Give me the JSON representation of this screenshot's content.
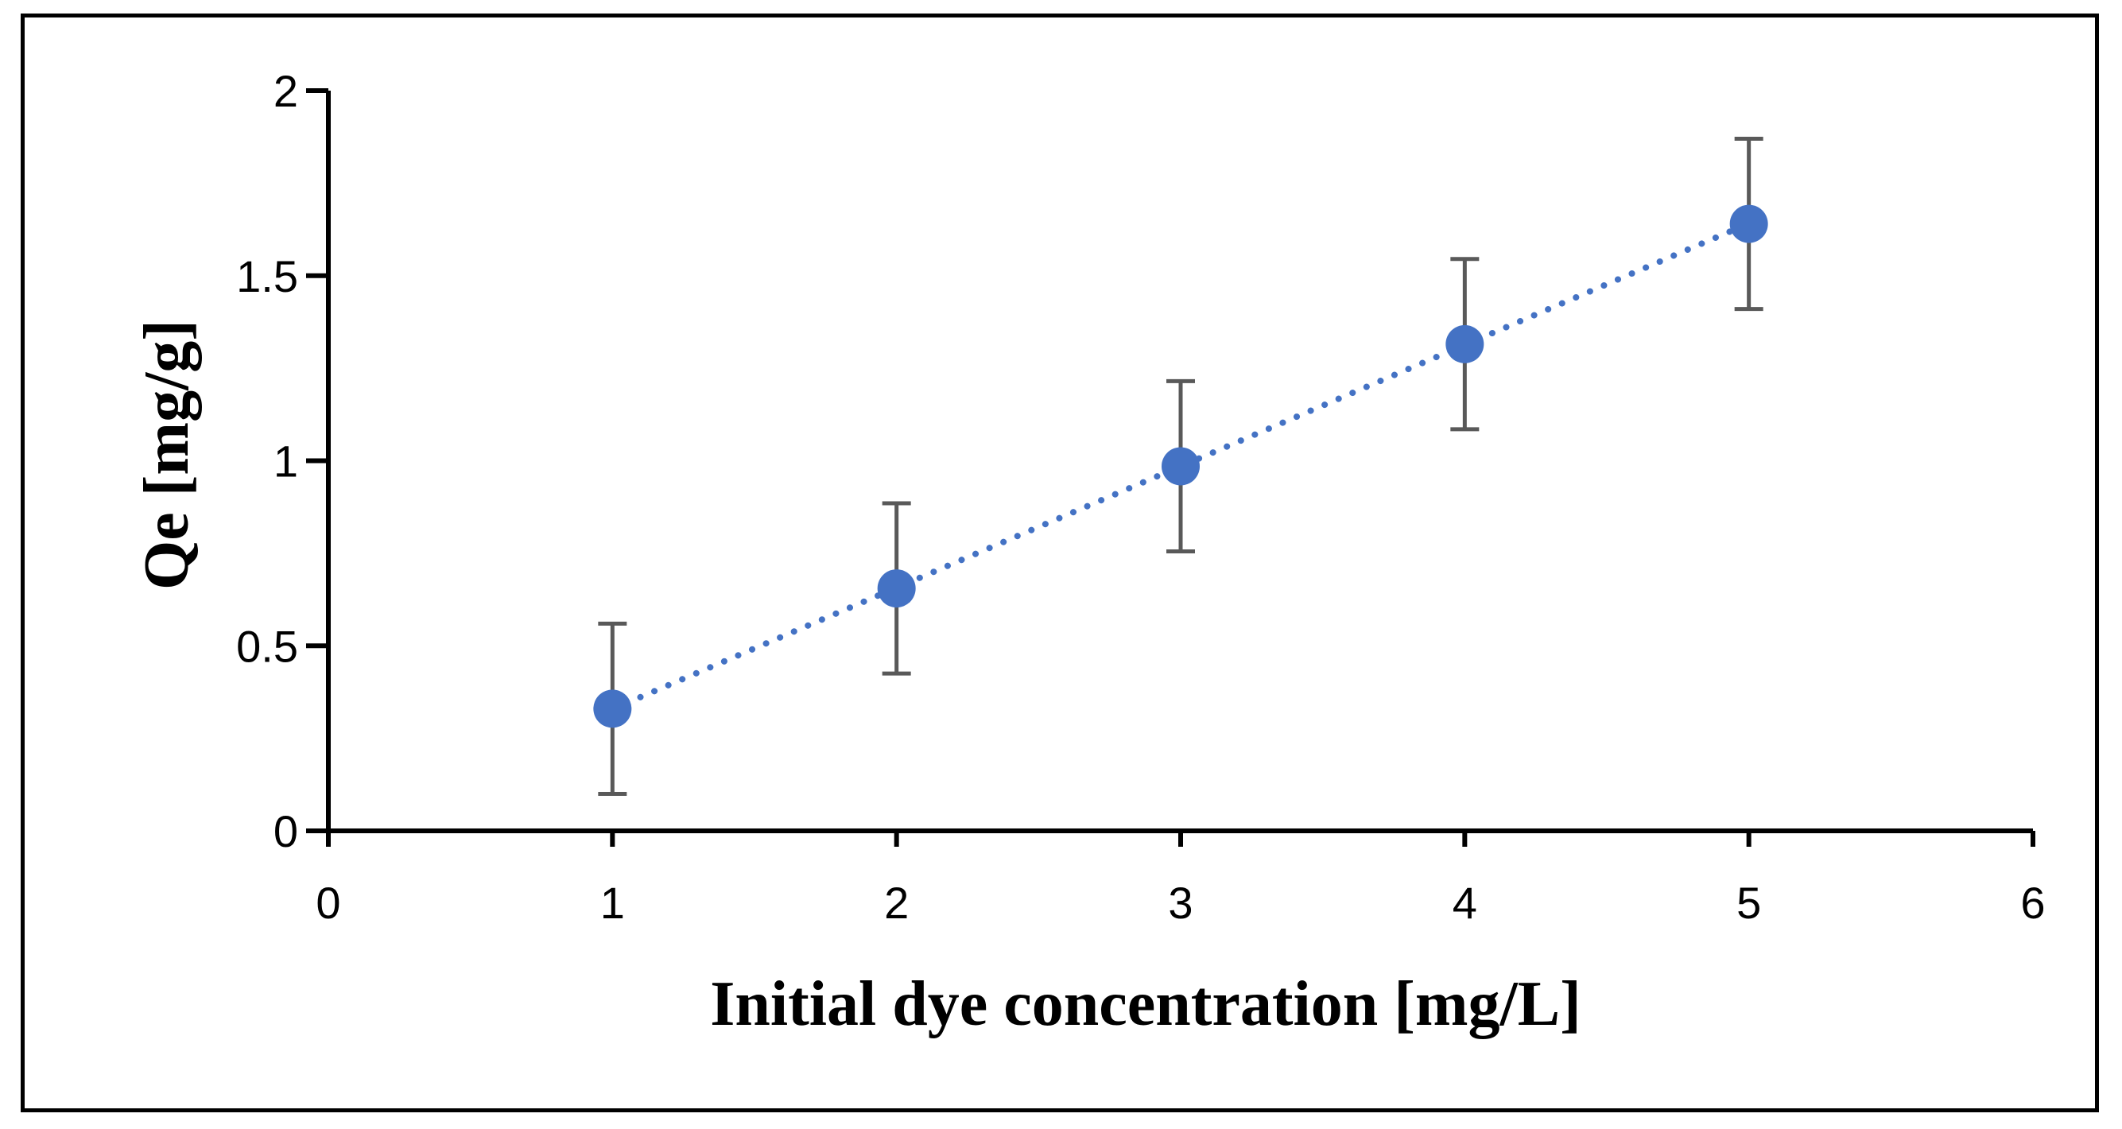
{
  "chart_data": {
    "type": "scatter",
    "title": "",
    "xlabel": "Initial dye concentration [mg/L]",
    "ylabel": "Qe [mg/g]",
    "xlim": [
      0,
      6
    ],
    "ylim": [
      0,
      2
    ],
    "xticks": [
      0,
      1,
      2,
      3,
      4,
      5,
      6
    ],
    "yticks": [
      0,
      0.5,
      1,
      1.5,
      2
    ],
    "xtick_labels": [
      "0",
      "1",
      "2",
      "3",
      "4",
      "5",
      "6"
    ],
    "ytick_labels": [
      "0",
      "0.5",
      "1",
      "1.5",
      "2"
    ],
    "grid": false,
    "legend": "none",
    "series": [
      {
        "name": "Qe",
        "x": [
          1,
          2,
          3,
          4,
          5
        ],
        "y": [
          0.33,
          0.655,
          0.985,
          1.315,
          1.64
        ],
        "error": [
          0.23,
          0.23,
          0.23,
          0.23,
          0.23
        ],
        "color": "#4472C4",
        "error_color": "#595959",
        "trendline": "linear-dotted"
      }
    ]
  }
}
